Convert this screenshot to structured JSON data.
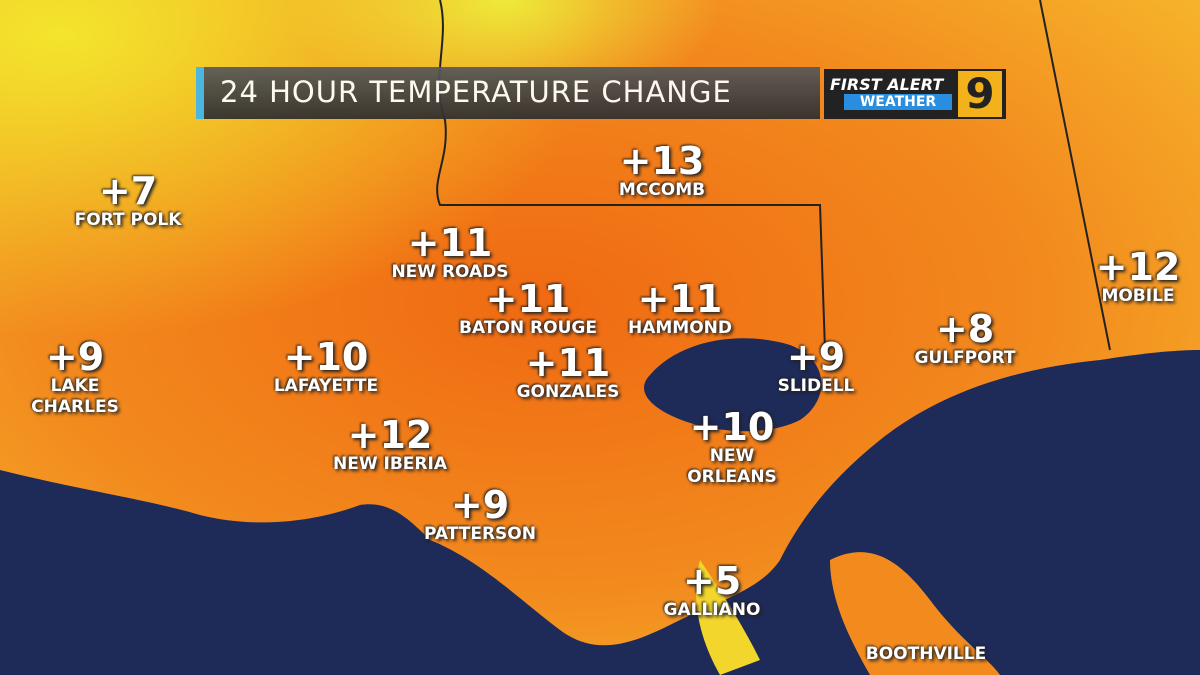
{
  "title": "24 HOUR TEMPERATURE CHANGE",
  "logo": {
    "line1": "FIRST ALERT",
    "line2": "WEATHER",
    "channel": "9"
  },
  "cities": [
    {
      "name": "FORT POLK",
      "value": "+7"
    },
    {
      "name": "MCCOMB",
      "value": "+13"
    },
    {
      "name": "NEW ROADS",
      "value": "+11"
    },
    {
      "name": "BATON ROUGE",
      "value": "+11"
    },
    {
      "name": "HAMMOND",
      "value": "+11"
    },
    {
      "name": "MOBILE",
      "value": "+12"
    },
    {
      "name": "LAKE CHARLES",
      "value": "+9"
    },
    {
      "name": "LAFAYETTE",
      "value": "+10"
    },
    {
      "name": "GONZALES",
      "value": "+11"
    },
    {
      "name": "SLIDELL",
      "value": "+9"
    },
    {
      "name": "GULFPORT",
      "value": "+8"
    },
    {
      "name": "NEW IBERIA",
      "value": "+12"
    },
    {
      "name": "NEW ORLEANS",
      "value": "+10"
    },
    {
      "name": "PATTERSON",
      "value": "+9"
    },
    {
      "name": "GALLIANO",
      "value": "+5"
    },
    {
      "name": "BOOTHVILLE"
    }
  ]
}
